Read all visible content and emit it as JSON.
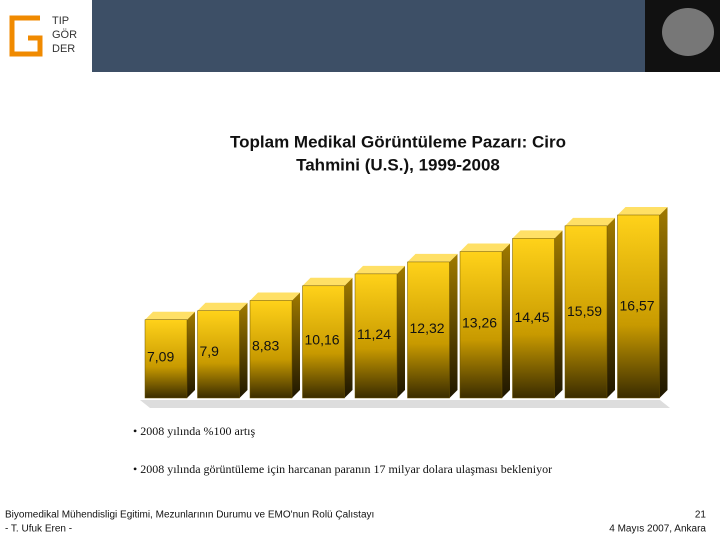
{
  "header": {
    "logo": [
      "TIP",
      "GÖR",
      "DER"
    ]
  },
  "chart_data": {
    "type": "bar3d",
    "title": [
      "Toplam Medikal Görüntüleme Pazarı: Ciro",
      "Tahmini (U.S.), 1999-2008"
    ],
    "categories": [
      null,
      null,
      null,
      null,
      null,
      null,
      null,
      null,
      null,
      null
    ],
    "values": [
      7.09,
      7.9,
      8.83,
      10.16,
      11.24,
      12.32,
      13.26,
      14.45,
      15.59,
      16.57
    ],
    "value_labels": [
      "7,09",
      "7,9",
      "8,83",
      "10,16",
      "11,24",
      "12,32",
      "13,26",
      "14,45",
      "15,59",
      "16,57"
    ],
    "color": "#e6bb00"
  },
  "bullets": [
    "• 2008 yılında %100 artış",
    "• 2008 yılında görüntüleme için harcanan paranın 17 milyar dolara ulaşması bekleniyor"
  ],
  "footer": {
    "left": [
      "Biyomedikal Mühendisligi Egitimi, Mezunlarının Durumu ve EMO'nun Rolü Çalıstayı",
      "- T. Ufuk Eren  -"
    ],
    "right": [
      "21",
      "4 Mayıs 2007, Ankara"
    ]
  }
}
